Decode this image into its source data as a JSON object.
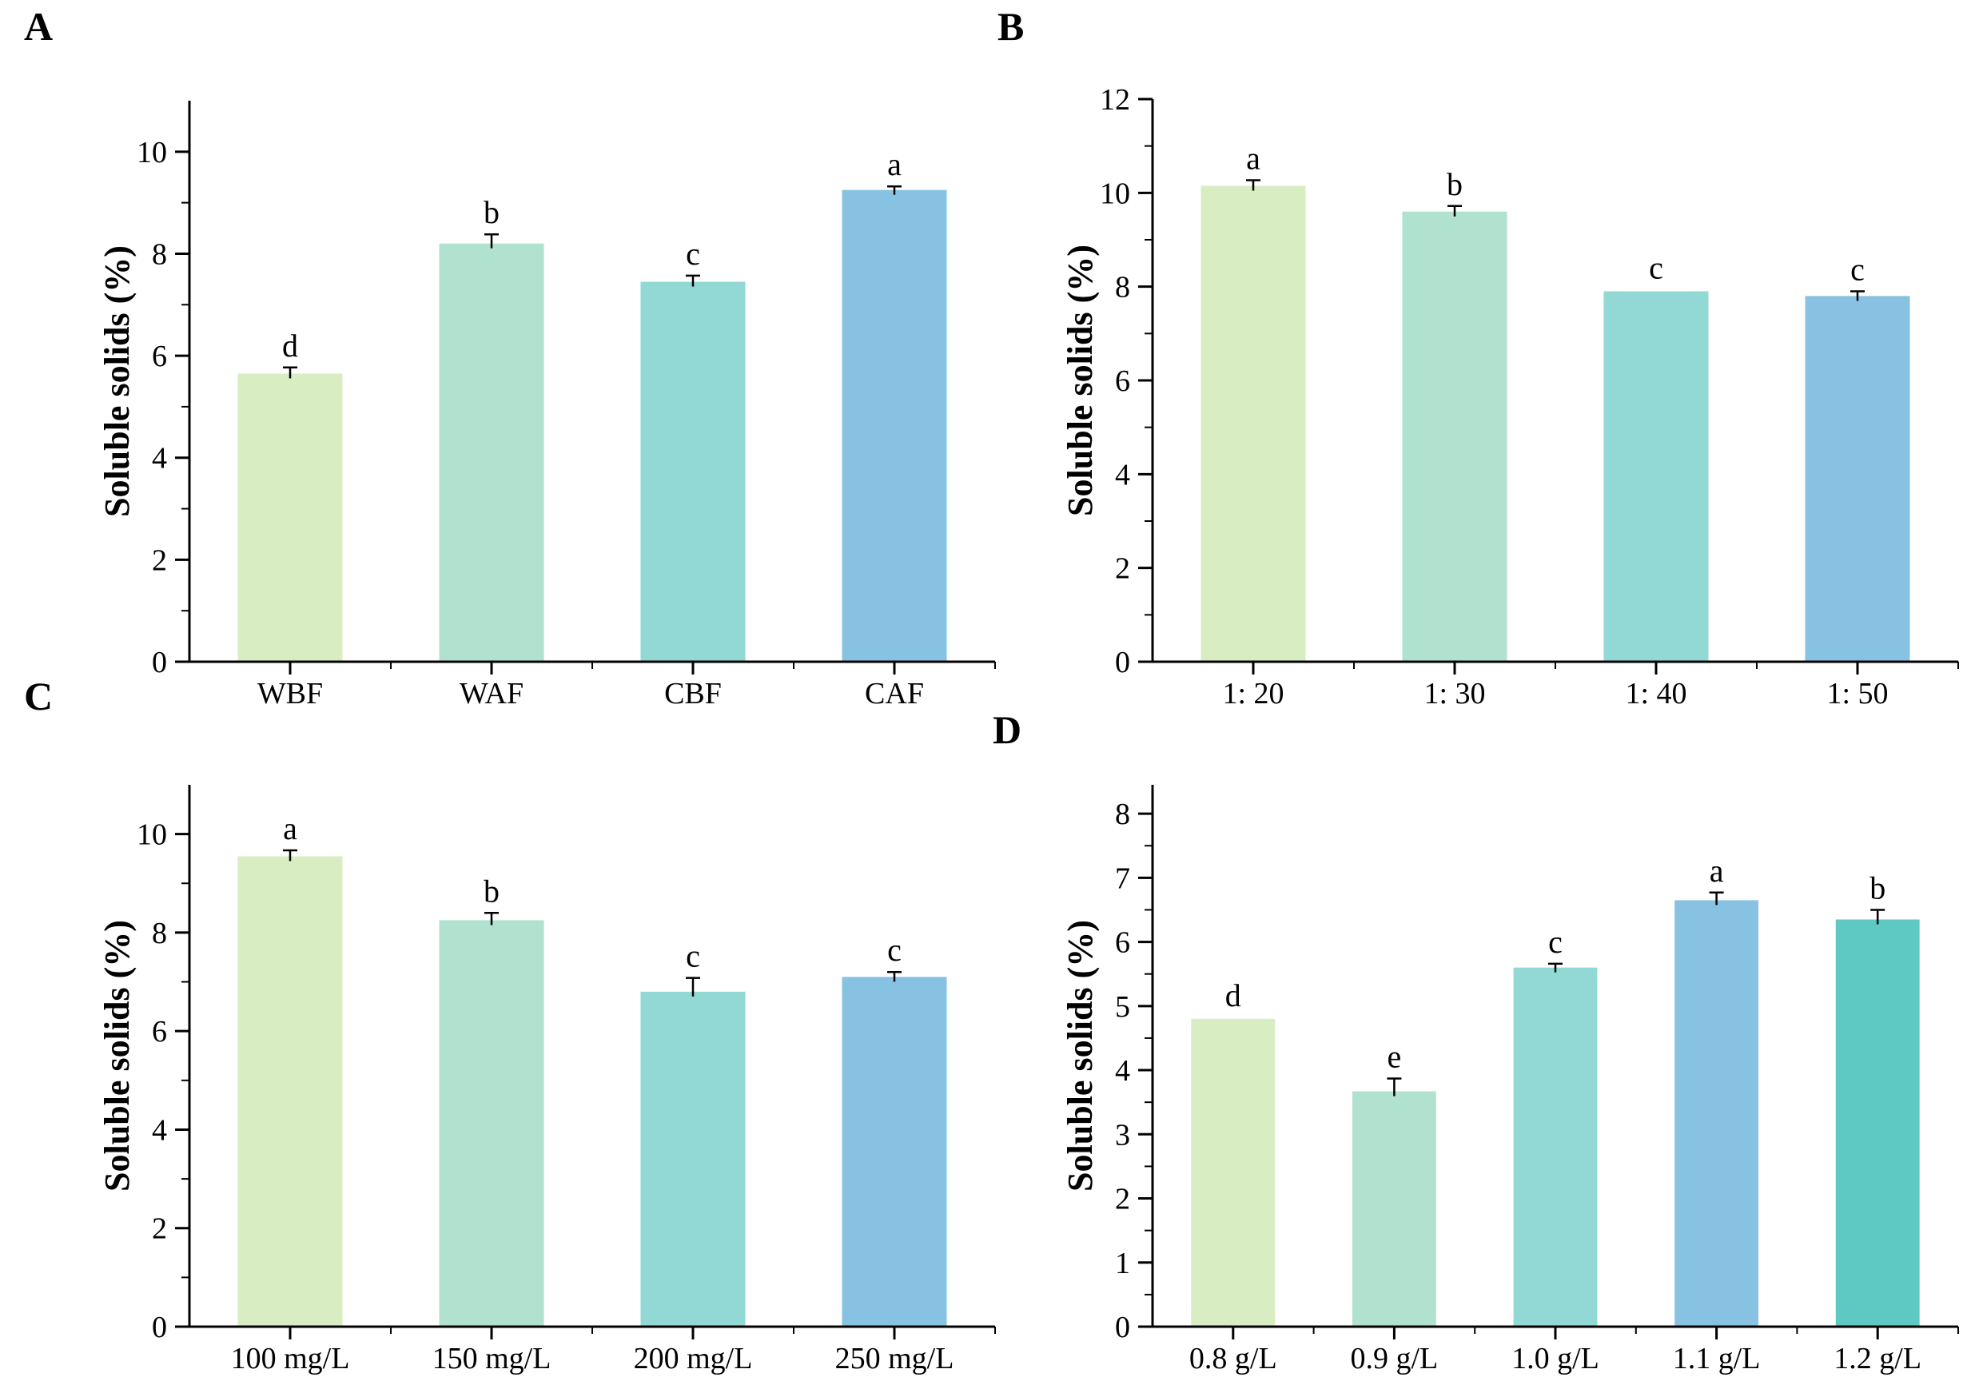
{
  "figure": {
    "background": "#ffffff",
    "axis_color": "#000000",
    "text_color": "#000000"
  },
  "chart_data": [
    {
      "panel": "A",
      "type": "bar",
      "title": "",
      "xlabel": "",
      "ylabel": "Soluble solids（%）",
      "categories": [
        "WBF",
        "WAF",
        "CBF",
        "CAF"
      ],
      "values": [
        5.65,
        8.2,
        7.45,
        9.25
      ],
      "errors": [
        0.12,
        0.18,
        0.12,
        0.07
      ],
      "sig_letters": [
        "d",
        "b",
        "c",
        "a"
      ],
      "colors": [
        "#d9edc3",
        "#b0e2cf",
        "#92d8d4",
        "#88c2e3"
      ],
      "ylim": [
        0,
        11
      ],
      "yticks": [
        0,
        2,
        4,
        6,
        8,
        10
      ],
      "minor_step": 1,
      "grid": false,
      "legend": null
    },
    {
      "panel": "B",
      "type": "bar",
      "title": "",
      "xlabel": "",
      "ylabel": "Soluble solids（%）",
      "categories": [
        "1：20",
        "1：30",
        "1：40",
        "1：50"
      ],
      "values": [
        10.15,
        9.6,
        7.9,
        7.8
      ],
      "errors": [
        0.12,
        0.12,
        0,
        0.1
      ],
      "sig_letters": [
        "a",
        "b",
        "c",
        "c"
      ],
      "colors": [
        "#d9edc3",
        "#b0e2cf",
        "#92d8d4",
        "#88c2e3"
      ],
      "ylim": [
        0,
        12
      ],
      "yticks": [
        0,
        2,
        4,
        6,
        8,
        10,
        12
      ],
      "minor_step": 1,
      "grid": false,
      "legend": null
    },
    {
      "panel": "C",
      "type": "bar",
      "title": "",
      "xlabel": "",
      "ylabel": "Soluble solids（%）",
      "categories": [
        "100 mg/L",
        "150 mg/L",
        "200 mg/L",
        "250 mg/L"
      ],
      "values": [
        9.55,
        8.25,
        6.8,
        7.1
      ],
      "errors": [
        0.12,
        0.15,
        0.28,
        0.1
      ],
      "sig_letters": [
        "a",
        "b",
        "c",
        "c"
      ],
      "colors": [
        "#d9edc3",
        "#b0e2cf",
        "#92d8d4",
        "#88c2e3"
      ],
      "ylim": [
        0,
        11
      ],
      "yticks": [
        0,
        2,
        4,
        6,
        8,
        10
      ],
      "minor_step": 1,
      "grid": false,
      "legend": null
    },
    {
      "panel": "D",
      "type": "bar",
      "title": "",
      "xlabel": "",
      "ylabel": "Soluble solids（%）",
      "categories": [
        "0.8 g/L",
        "0.9 g/L",
        "1.0 g/L",
        "1.1 g/L",
        "1.2 g/L"
      ],
      "values": [
        4.8,
        3.67,
        5.6,
        6.65,
        6.35
      ],
      "errors": [
        0,
        0.2,
        0.06,
        0.12,
        0.15
      ],
      "sig_letters": [
        "d",
        "e",
        "c",
        "a",
        "b"
      ],
      "colors": [
        "#d9edc3",
        "#b0e2cf",
        "#92d8d4",
        "#88c2e3",
        "#5ec9c2"
      ],
      "ylim": [
        0,
        8.45
      ],
      "yticks": [
        0,
        1,
        2,
        3,
        4,
        5,
        6,
        7,
        8
      ],
      "minor_step": 0.5,
      "grid": false,
      "legend": null
    }
  ]
}
